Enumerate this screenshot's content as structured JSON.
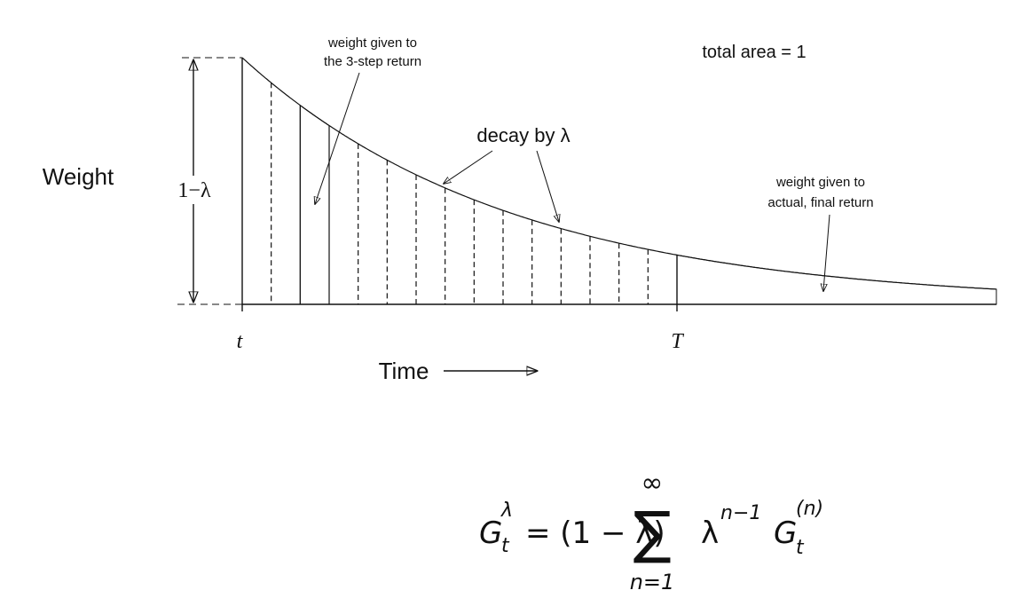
{
  "diagram": {
    "y_label": "Weight",
    "height_label": "1−λ",
    "x_start_label": "t",
    "x_end_label": "T",
    "x_label": "Time",
    "annotations": {
      "three_step": [
        "weight given to",
        "the 3-step return"
      ],
      "total_area": "total area = 1",
      "decay": "decay by λ",
      "final_return": [
        "weight given to",
        "actual, final return"
      ]
    }
  },
  "formula": {
    "lhs": "G",
    "lhs_sup": "λ",
    "lhs_sub": "t",
    "factor": "= (1 − λ)",
    "sum": "∑",
    "sum_upper": "∞",
    "sum_lower": "n=1",
    "term": "λ",
    "term_sup": "n−1",
    "g": "G",
    "g_sub": "t",
    "g_sup": "(n)"
  }
}
